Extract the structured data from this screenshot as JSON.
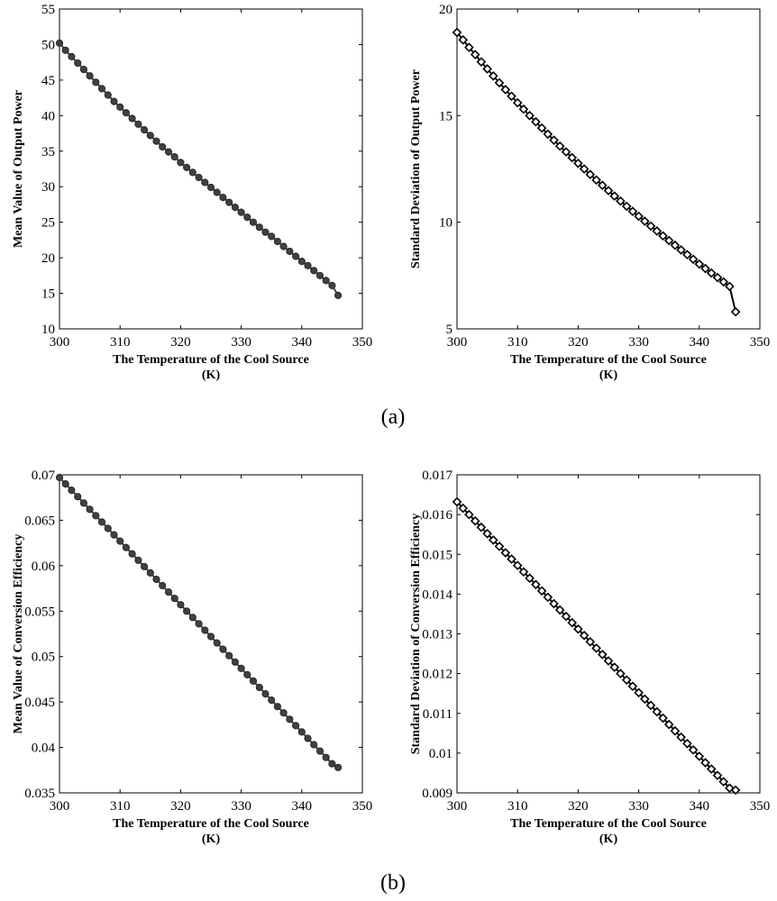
{
  "figure": {
    "panel_labels": [
      "(a)",
      "(b)"
    ]
  },
  "chart_data": [
    {
      "type": "line",
      "marker": "circle",
      "color": "#404040",
      "xlabel": "The Temperature of the Cool Source",
      "xlabel_unit": "(K)",
      "ylabel": "Mean Value of Output Power",
      "xlim": [
        300,
        350
      ],
      "ylim": [
        10,
        55
      ],
      "xticks": [
        "300",
        "310",
        "320",
        "330",
        "340",
        "350"
      ],
      "yticks": [
        "10",
        "15",
        "20",
        "25",
        "30",
        "35",
        "40",
        "45",
        "50",
        "55"
      ],
      "grid": false,
      "x": [
        300,
        301,
        302,
        303,
        304,
        305,
        306,
        307,
        308,
        309,
        310,
        311,
        312,
        313,
        314,
        315,
        316,
        317,
        318,
        319,
        320,
        321,
        322,
        323,
        324,
        325,
        326,
        327,
        328,
        329,
        330,
        331,
        332,
        333,
        334,
        335,
        336,
        337,
        338,
        339,
        340,
        341,
        342,
        343,
        344,
        345,
        346
      ],
      "series": [
        {
          "values": [
            50.2,
            49.2,
            48.3,
            47.4,
            46.5,
            45.6,
            44.7,
            43.8,
            42.9,
            42.0,
            41.2,
            40.4,
            39.6,
            38.8,
            38.0,
            37.2,
            36.4,
            35.6,
            34.9,
            34.2,
            33.4,
            32.7,
            32.0,
            31.3,
            30.6,
            29.9,
            29.2,
            28.5,
            27.8,
            27.1,
            26.4,
            25.7,
            25.0,
            24.3,
            23.6,
            23.0,
            22.3,
            21.6,
            20.9,
            20.2,
            19.5,
            18.9,
            18.2,
            17.5,
            16.8,
            16.1,
            14.7
          ]
        }
      ]
    },
    {
      "type": "line",
      "marker": "diamond",
      "color": "#000000",
      "xlabel": "The Temperature of the Cool Source",
      "xlabel_unit": "(K)",
      "ylabel": "Standard Deviation of Output Power",
      "xlim": [
        300,
        350
      ],
      "ylim": [
        5,
        20
      ],
      "xticks": [
        "300",
        "310",
        "320",
        "330",
        "340",
        "350"
      ],
      "yticks": [
        "5",
        "10",
        "15",
        "20"
      ],
      "grid": false,
      "x": [
        300,
        301,
        302,
        303,
        304,
        305,
        306,
        307,
        308,
        309,
        310,
        311,
        312,
        313,
        314,
        315,
        316,
        317,
        318,
        319,
        320,
        321,
        322,
        323,
        324,
        325,
        326,
        327,
        328,
        329,
        330,
        331,
        332,
        333,
        334,
        335,
        336,
        337,
        338,
        339,
        340,
        341,
        342,
        343,
        344,
        345,
        346
      ],
      "series": [
        {
          "values": [
            18.9,
            18.55,
            18.2,
            17.86,
            17.52,
            17.19,
            16.86,
            16.54,
            16.22,
            15.91,
            15.6,
            15.3,
            15.0,
            14.71,
            14.42,
            14.13,
            13.85,
            13.57,
            13.3,
            13.03,
            12.76,
            12.5,
            12.24,
            11.98,
            11.73,
            11.48,
            11.23,
            10.99,
            10.75,
            10.51,
            10.28,
            10.05,
            9.82,
            9.59,
            9.36,
            9.14,
            8.92,
            8.7,
            8.48,
            8.26,
            8.04,
            7.83,
            7.62,
            7.41,
            7.2,
            6.99,
            5.8
          ]
        }
      ]
    },
    {
      "type": "line",
      "marker": "circle",
      "color": "#404040",
      "xlabel": "The Temperature of the Cool Source",
      "xlabel_unit": "(K)",
      "ylabel": "Mean Value of Conversion Efficiency",
      "xlim": [
        300,
        350
      ],
      "ylim": [
        0.035,
        0.07
      ],
      "xticks": [
        "300",
        "310",
        "320",
        "330",
        "340",
        "350"
      ],
      "yticks": [
        "0.035",
        "0.04",
        "0.045",
        "0.05",
        "0.055",
        "0.06",
        "0.065",
        "0.07"
      ],
      "grid": false,
      "x": [
        300,
        301,
        302,
        303,
        304,
        305,
        306,
        307,
        308,
        309,
        310,
        311,
        312,
        313,
        314,
        315,
        316,
        317,
        318,
        319,
        320,
        321,
        322,
        323,
        324,
        325,
        326,
        327,
        328,
        329,
        330,
        331,
        332,
        333,
        334,
        335,
        336,
        337,
        338,
        339,
        340,
        341,
        342,
        343,
        344,
        345,
        346
      ],
      "series": [
        {
          "values": [
            0.0697,
            0.069,
            0.0683,
            0.0676,
            0.0669,
            0.0662,
            0.0655,
            0.0648,
            0.0641,
            0.0634,
            0.0627,
            0.062,
            0.0613,
            0.0606,
            0.0599,
            0.0592,
            0.0585,
            0.0578,
            0.0571,
            0.0564,
            0.0557,
            0.055,
            0.0543,
            0.0536,
            0.0529,
            0.0522,
            0.0515,
            0.0508,
            0.0501,
            0.0494,
            0.0487,
            0.048,
            0.0473,
            0.0466,
            0.0459,
            0.0452,
            0.0445,
            0.0438,
            0.0431,
            0.0424,
            0.0417,
            0.041,
            0.0403,
            0.0396,
            0.0389,
            0.0382,
            0.0378
          ]
        }
      ]
    },
    {
      "type": "line",
      "marker": "diamond",
      "color": "#000000",
      "xlabel": "The Temperature of the Cool Source",
      "xlabel_unit": "(K)",
      "ylabel": "Standard Deviation of Conversion Efficiency",
      "xlim": [
        300,
        350
      ],
      "ylim": [
        0.009,
        0.017
      ],
      "xticks": [
        "300",
        "310",
        "320",
        "330",
        "340",
        "350"
      ],
      "yticks": [
        "0.009",
        "0.01",
        "0.011",
        "0.012",
        "0.013",
        "0.014",
        "0.015",
        "0.016",
        "0.017"
      ],
      "grid": false,
      "x": [
        300,
        301,
        302,
        303,
        304,
        305,
        306,
        307,
        308,
        309,
        310,
        311,
        312,
        313,
        314,
        315,
        316,
        317,
        318,
        319,
        320,
        321,
        322,
        323,
        324,
        325,
        326,
        327,
        328,
        329,
        330,
        331,
        332,
        333,
        334,
        335,
        336,
        337,
        338,
        339,
        340,
        341,
        342,
        343,
        344,
        345,
        346
      ],
      "series": [
        {
          "values": [
            0.01632,
            0.01616,
            0.016,
            0.01584,
            0.01568,
            0.01552,
            0.01536,
            0.0152,
            0.01504,
            0.01488,
            0.01472,
            0.01456,
            0.0144,
            0.01424,
            0.01408,
            0.01392,
            0.01376,
            0.0136,
            0.01344,
            0.01328,
            0.01312,
            0.01296,
            0.0128,
            0.01264,
            0.01248,
            0.01232,
            0.01216,
            0.012,
            0.01184,
            0.01168,
            0.01152,
            0.01136,
            0.0112,
            0.01104,
            0.01088,
            0.01072,
            0.01056,
            0.0104,
            0.01024,
            0.01008,
            0.00992,
            0.00976,
            0.0096,
            0.00944,
            0.00928,
            0.00912,
            0.00907
          ]
        }
      ]
    }
  ]
}
